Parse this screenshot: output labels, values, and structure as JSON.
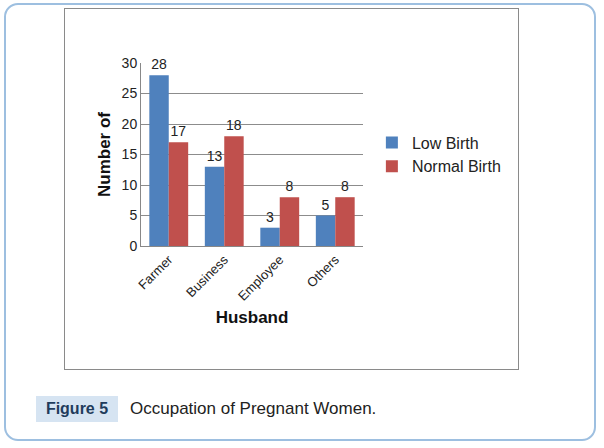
{
  "chart_data": {
    "type": "bar",
    "title": "Occupation of Pregnant Women.",
    "figure_label": "Figure 5",
    "x_label": "Husband",
    "y_label": "Number of",
    "categories": [
      "Farmer",
      "Business",
      "Employee",
      "Others"
    ],
    "series": [
      {
        "name": "Low Birth",
        "color": "#4f81bd",
        "values": [
          28,
          13,
          3,
          5
        ]
      },
      {
        "name": "Normal Birth",
        "color": "#c0504d",
        "values": [
          17,
          18,
          8,
          8
        ]
      }
    ],
    "ylim": [
      0,
      30
    ],
    "yticks": [
      0,
      5,
      10,
      15,
      20,
      25,
      30
    ],
    "grid": true,
    "legend": "right",
    "data_labels": true
  }
}
